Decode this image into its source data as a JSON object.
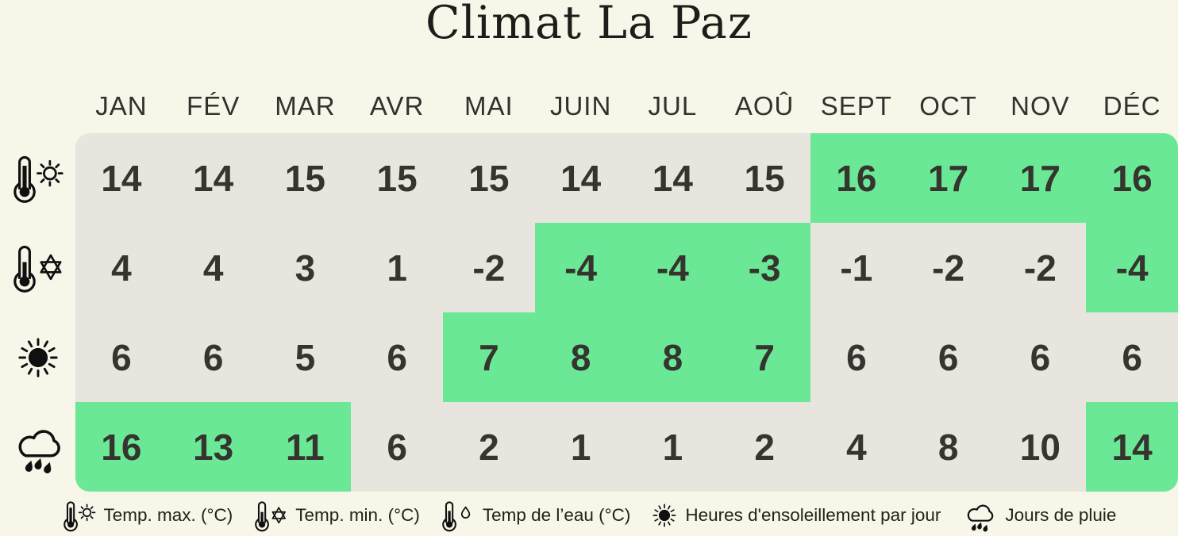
{
  "title": "Climat La Paz",
  "months": [
    "JAN",
    "FÉV",
    "MAR",
    "AVR",
    "MAI",
    "JUIN",
    "JUL",
    "AOÛ",
    "SEPT",
    "OCT",
    "NOV",
    "DÉC"
  ],
  "chart_data": {
    "type": "table",
    "title": "Climat La Paz",
    "categories": [
      "JAN",
      "FÉV",
      "MAR",
      "AVR",
      "MAI",
      "JUIN",
      "JUL",
      "AOÛ",
      "SEPT",
      "OCT",
      "NOV",
      "DÉC"
    ],
    "series": [
      {
        "name": "Temp. max. (°C)",
        "values": [
          14,
          14,
          15,
          15,
          15,
          14,
          14,
          15,
          16,
          17,
          17,
          16
        ],
        "highlighted_months": [
          "SEPT",
          "OCT",
          "NOV",
          "DÉC"
        ]
      },
      {
        "name": "Temp. min. (°C)",
        "values": [
          4,
          4,
          3,
          1,
          -2,
          -4,
          -4,
          -3,
          -1,
          -2,
          -2,
          -4
        ],
        "highlighted_months": [
          "JUIN",
          "JUL",
          "AOÛ",
          "DÉC"
        ]
      },
      {
        "name": "Heures d'ensoleillement par jour",
        "values": [
          6,
          6,
          5,
          6,
          7,
          8,
          8,
          7,
          6,
          6,
          6,
          6
        ],
        "highlighted_months": [
          "MAI",
          "JUIN",
          "JUL",
          "AOÛ"
        ]
      },
      {
        "name": "Jours de pluie",
        "values": [
          16,
          13,
          11,
          6,
          2,
          1,
          1,
          2,
          4,
          8,
          10,
          14
        ],
        "highlighted_months": [
          "JAN",
          "FÉV",
          "MAR",
          "DÉC"
        ]
      }
    ],
    "legend_position": "bottom"
  },
  "rows": [
    {
      "id": "temp-max",
      "icon": "thermometer-sun-icon",
      "values": [
        14,
        14,
        15,
        15,
        15,
        14,
        14,
        15,
        16,
        17,
        17,
        16
      ],
      "highlight": [
        0,
        0,
        0,
        0,
        0,
        0,
        0,
        0,
        1,
        1,
        1,
        1
      ]
    },
    {
      "id": "temp-min",
      "icon": "thermometer-snowflake-icon",
      "values": [
        4,
        4,
        3,
        1,
        -2,
        -4,
        -4,
        -3,
        -1,
        -2,
        -2,
        -4
      ],
      "highlight": [
        0,
        0,
        0,
        0,
        0,
        1,
        1,
        1,
        0,
        0,
        0,
        1
      ]
    },
    {
      "id": "sun-hours",
      "icon": "sun-icon",
      "values": [
        6,
        6,
        5,
        6,
        7,
        8,
        8,
        7,
        6,
        6,
        6,
        6
      ],
      "highlight": [
        0,
        0,
        0,
        0,
        1,
        1,
        1,
        1,
        0,
        0,
        0,
        0
      ]
    },
    {
      "id": "rain-days",
      "icon": "rain-cloud-icon",
      "values": [
        16,
        13,
        11,
        6,
        2,
        1,
        1,
        2,
        4,
        8,
        10,
        14
      ],
      "highlight": [
        1,
        1,
        1,
        0,
        0,
        0,
        0,
        0,
        0,
        0,
        0,
        1
      ]
    }
  ],
  "legend": [
    {
      "icon": "thermometer-sun-icon",
      "label": "Temp. max. (°C)"
    },
    {
      "icon": "thermometer-snowflake-icon",
      "label": "Temp. min. (°C)"
    },
    {
      "icon": "thermometer-droplet-icon",
      "label": "Temp de l’eau (°C)"
    },
    {
      "icon": "sun-icon",
      "label": "Heures d'ensoleillement par jour"
    },
    {
      "icon": "rain-cloud-icon",
      "label": "Jours de pluie"
    }
  ],
  "colors": {
    "page_bg": "#F8F6E9",
    "cell_bg": "#E7E5DD",
    "highlight": "#6BE896",
    "number_text": "#35342E",
    "title_text": "#1D1D1A"
  }
}
